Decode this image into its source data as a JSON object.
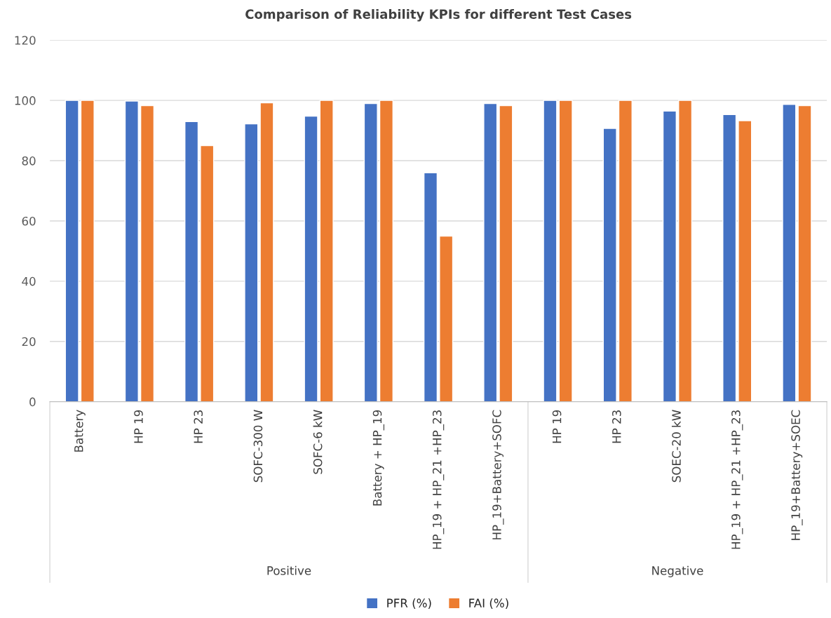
{
  "chart_data": {
    "type": "bar",
    "title": "Comparison of Reliability KPIs for different Test Cases",
    "categories": [
      "Battery",
      "HP 19",
      "HP 23",
      "SOFC-300 W",
      "SOFC-6 kW",
      "Battery + HP_19",
      "HP_19 + HP_21 +HP_23",
      "HP_19+Battery+SOFC",
      "HP 19",
      "HP 23",
      "SOEC-20 kW",
      "HP_19 + HP_21 +HP_23",
      "HP_19+Battery+SOEC"
    ],
    "series": [
      {
        "name": "PFR (%)",
        "color": "#4472c4",
        "values": [
          100,
          99.8,
          93,
          92.2,
          94.8,
          99,
          76,
          99,
          100,
          90.7,
          96.5,
          95.3,
          98.7
        ]
      },
      {
        "name": "FAI (%)",
        "color": "#ed7d31",
        "values": [
          100,
          98.3,
          85,
          99.2,
          100,
          100,
          55,
          98.3,
          100,
          100,
          100,
          93.3,
          98.3
        ]
      }
    ],
    "annotations": [
      "Positive",
      "Negative"
    ],
    "ylim": [
      0,
      120
    ],
    "yticks": [
      0,
      20,
      40,
      60,
      80,
      100,
      120
    ],
    "grid": "y",
    "legend": "bottom"
  }
}
